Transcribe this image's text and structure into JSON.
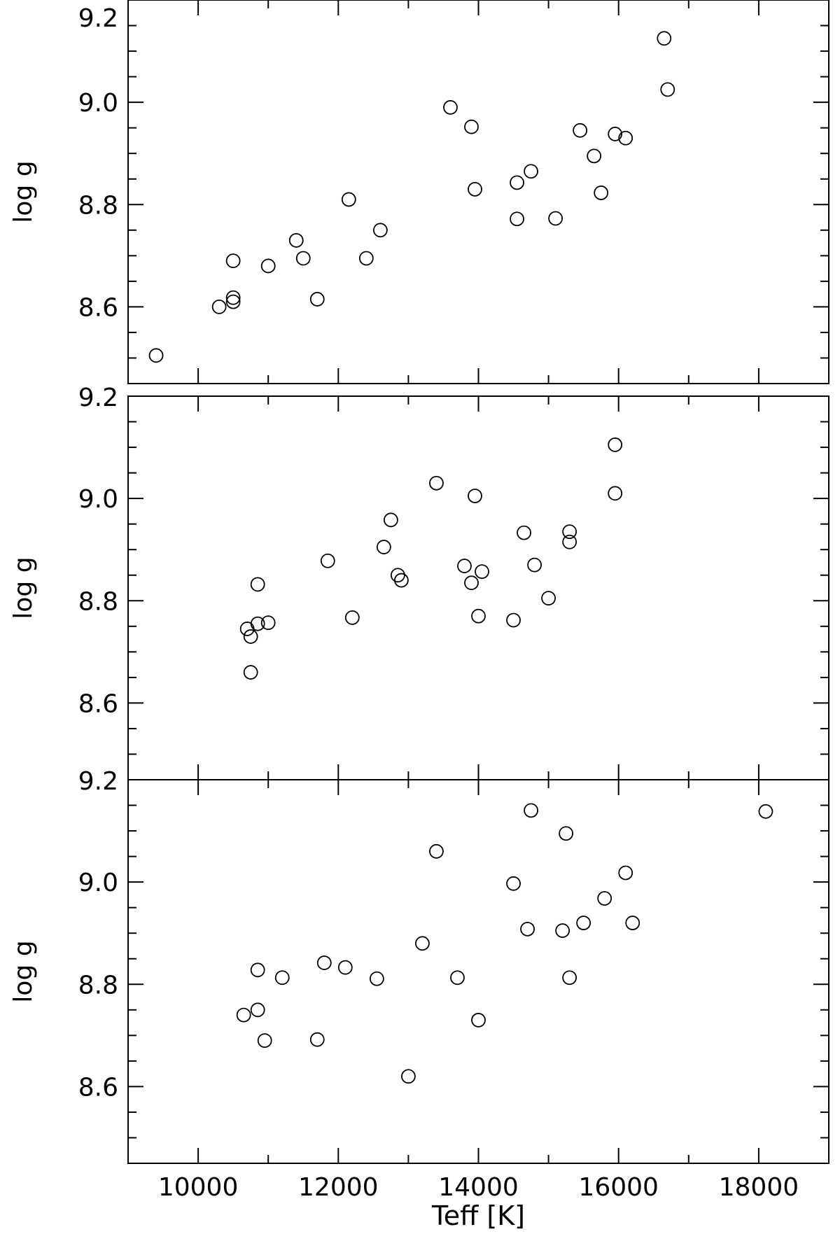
{
  "chart_data": [
    {
      "type": "scatter",
      "xlim": [
        9000,
        19000
      ],
      "ylim": [
        8.45,
        9.2
      ],
      "yticks": [
        8.6,
        8.8,
        9.0
      ],
      "ylabel": "log g",
      "top_label": "9.2",
      "marker": "open-circle",
      "points": [
        [
          9400,
          8.505
        ],
        [
          10300,
          8.6
        ],
        [
          10500,
          8.61
        ],
        [
          10500,
          8.618
        ],
        [
          10500,
          8.69
        ],
        [
          11000,
          8.68
        ],
        [
          11400,
          8.73
        ],
        [
          11500,
          8.695
        ],
        [
          11700,
          8.615
        ],
        [
          12150,
          8.81
        ],
        [
          12400,
          8.695
        ],
        [
          12600,
          8.75
        ],
        [
          13600,
          8.99
        ],
        [
          13900,
          8.952
        ],
        [
          13950,
          8.83
        ],
        [
          14550,
          8.843
        ],
        [
          14550,
          8.772
        ],
        [
          14750,
          8.865
        ],
        [
          15100,
          8.773
        ],
        [
          15450,
          8.945
        ],
        [
          15650,
          8.895
        ],
        [
          15750,
          8.823
        ],
        [
          15950,
          8.938
        ],
        [
          16100,
          8.93
        ],
        [
          16650,
          9.125
        ],
        [
          16700,
          9.025
        ]
      ]
    },
    {
      "type": "scatter",
      "xlim": [
        9000,
        19000
      ],
      "ylim": [
        8.45,
        9.2
      ],
      "yticks": [
        8.6,
        8.8,
        9.0
      ],
      "ylabel": "log g",
      "top_label": "9.2",
      "marker": "open-circle",
      "points": [
        [
          10700,
          8.745
        ],
        [
          10750,
          8.73
        ],
        [
          10750,
          8.66
        ],
        [
          10850,
          8.755
        ],
        [
          10850,
          8.832
        ],
        [
          11000,
          8.757
        ],
        [
          11850,
          8.878
        ],
        [
          12200,
          8.767
        ],
        [
          12650,
          8.905
        ],
        [
          12750,
          8.958
        ],
        [
          12850,
          8.85
        ],
        [
          12900,
          8.84
        ],
        [
          13400,
          9.03
        ],
        [
          13800,
          8.868
        ],
        [
          13900,
          8.835
        ],
        [
          13950,
          9.005
        ],
        [
          14000,
          8.77
        ],
        [
          14050,
          8.857
        ],
        [
          14500,
          8.762
        ],
        [
          14650,
          8.933
        ],
        [
          14800,
          8.87
        ],
        [
          15000,
          8.805
        ],
        [
          15300,
          8.915
        ],
        [
          15300,
          8.935
        ],
        [
          15950,
          9.105
        ],
        [
          15950,
          9.01
        ]
      ]
    },
    {
      "type": "scatter",
      "xlim": [
        9000,
        19000
      ],
      "ylim": [
        8.45,
        9.2
      ],
      "yticks": [
        8.6,
        8.8,
        9.0
      ],
      "xticks": [
        10000,
        12000,
        14000,
        16000,
        18000
      ],
      "ylabel": "log g",
      "xlabel": "Teff [K]",
      "top_label": "9.2",
      "marker": "open-circle",
      "points": [
        [
          10650,
          8.74
        ],
        [
          10850,
          8.828
        ],
        [
          10850,
          8.75
        ],
        [
          10950,
          8.69
        ],
        [
          11200,
          8.813
        ],
        [
          11800,
          8.842
        ],
        [
          11700,
          8.692
        ],
        [
          12100,
          8.833
        ],
        [
          12550,
          8.811
        ],
        [
          13000,
          8.62
        ],
        [
          13200,
          8.88
        ],
        [
          13400,
          9.06
        ],
        [
          13700,
          8.813
        ],
        [
          14000,
          8.73
        ],
        [
          14500,
          8.997
        ],
        [
          14700,
          8.908
        ],
        [
          14750,
          9.14
        ],
        [
          15200,
          8.905
        ],
        [
          15250,
          9.095
        ],
        [
          15300,
          8.813
        ],
        [
          15500,
          8.92
        ],
        [
          15800,
          8.968
        ],
        [
          16100,
          9.018
        ],
        [
          16200,
          8.92
        ],
        [
          18100,
          9.138
        ]
      ]
    }
  ]
}
